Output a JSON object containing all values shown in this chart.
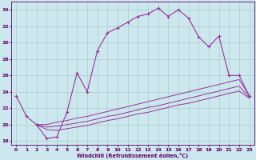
{
  "xlabel": "Windchill (Refroidissement éolien,°C)",
  "background_color": "#cce8ee",
  "line_color": "#993399",
  "grid_color": "#aacccc",
  "ylim": [
    17.5,
    35.0
  ],
  "xlim": [
    -0.5,
    23.5
  ],
  "yticks": [
    18,
    20,
    22,
    24,
    26,
    28,
    30,
    32,
    34
  ],
  "xticks": [
    0,
    1,
    2,
    3,
    4,
    5,
    6,
    7,
    8,
    9,
    10,
    11,
    12,
    13,
    14,
    15,
    16,
    17,
    18,
    19,
    20,
    21,
    22,
    23
  ],
  "main_line_x": [
    0,
    1,
    2,
    3,
    4,
    5,
    6,
    7,
    8,
    9,
    10,
    11,
    12,
    13,
    14,
    15,
    16,
    17,
    18,
    19,
    20,
    21,
    22,
    23
  ],
  "main_line_y": [
    23.5,
    21.0,
    20.0,
    18.3,
    18.5,
    21.5,
    26.3,
    24.0,
    29.0,
    31.2,
    31.8,
    32.5,
    33.2,
    33.5,
    34.2,
    33.2,
    34.0,
    33.0,
    30.7,
    29.5,
    30.8,
    26.0,
    26.0,
    23.5
  ],
  "lower_line1_x": [
    2,
    3,
    4,
    5,
    6,
    7,
    8,
    9,
    10,
    11,
    12,
    13,
    14,
    15,
    16,
    17,
    18,
    19,
    20,
    21,
    22,
    23
  ],
  "lower_line1_y": [
    20.0,
    20.0,
    20.3,
    20.5,
    20.8,
    21.0,
    21.3,
    21.6,
    21.9,
    22.2,
    22.5,
    22.8,
    23.1,
    23.4,
    23.7,
    24.0,
    24.3,
    24.6,
    24.9,
    25.2,
    25.5,
    23.5
  ],
  "lower_line2_x": [
    2,
    3,
    4,
    5,
    6,
    7,
    8,
    9,
    10,
    11,
    12,
    13,
    14,
    15,
    16,
    17,
    18,
    19,
    20,
    21,
    22,
    23
  ],
  "lower_line2_y": [
    20.0,
    19.7,
    19.8,
    20.0,
    20.2,
    20.4,
    20.7,
    21.0,
    21.2,
    21.5,
    21.8,
    22.1,
    22.3,
    22.6,
    22.9,
    23.2,
    23.5,
    23.8,
    24.1,
    24.4,
    24.7,
    23.3
  ],
  "lower_line3_x": [
    2,
    3,
    4,
    5,
    6,
    7,
    8,
    9,
    10,
    11,
    12,
    13,
    14,
    15,
    16,
    17,
    18,
    19,
    20,
    21,
    22,
    23
  ],
  "lower_line3_y": [
    20.0,
    19.4,
    19.3,
    19.5,
    19.7,
    19.9,
    20.2,
    20.5,
    20.7,
    21.0,
    21.3,
    21.5,
    21.8,
    22.1,
    22.4,
    22.6,
    22.9,
    23.2,
    23.5,
    23.8,
    24.1,
    23.2
  ]
}
